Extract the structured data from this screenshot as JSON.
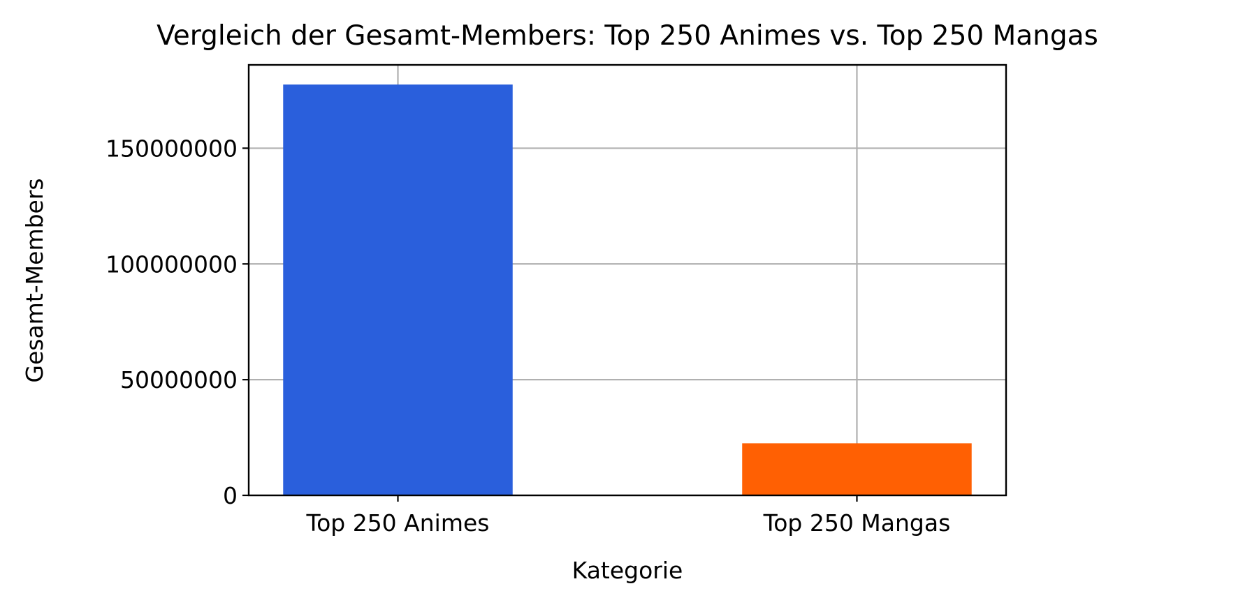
{
  "chart_data": {
    "type": "bar",
    "title": "Vergleich der Gesamt-Members: Top 250 Animes vs. Top 250 Mangas",
    "xlabel": "Kategorie",
    "ylabel": "Gesamt-Members",
    "categories": [
      "Top 250 Animes",
      "Top 250 Mangas"
    ],
    "values": [
      177500000,
      22500000
    ],
    "colors": [
      "#2a5fdc",
      "#ff6003"
    ],
    "ylim": [
      0,
      186000000
    ],
    "yticks": [
      0,
      50000000,
      100000000,
      150000000
    ],
    "ytick_labels": [
      "0",
      "50000000",
      "100000000",
      "150000000"
    ],
    "grid": true,
    "legend": "none"
  }
}
